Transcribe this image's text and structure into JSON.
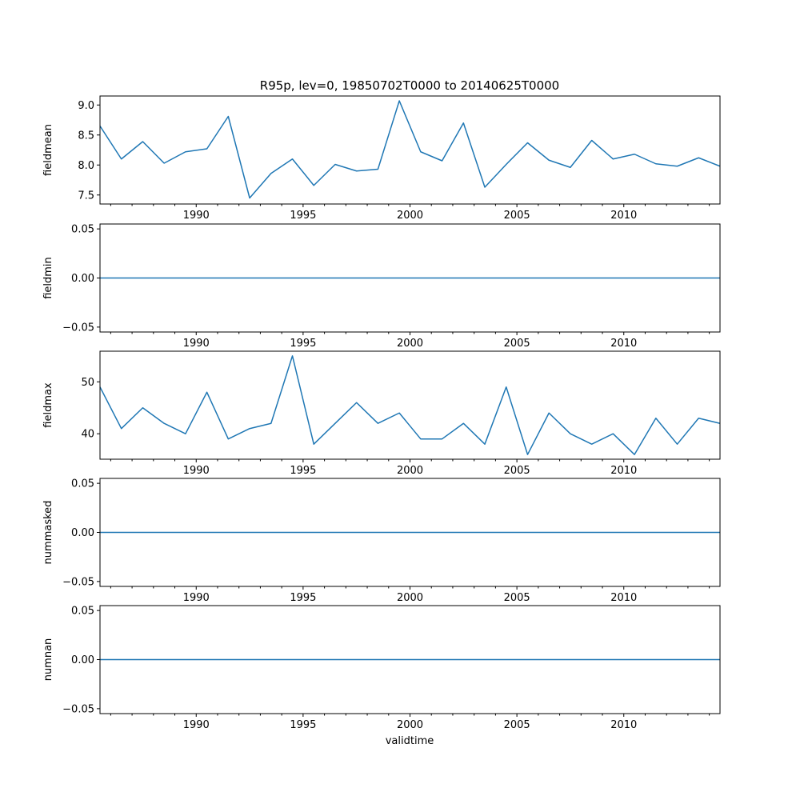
{
  "chart_data": {
    "type": "line",
    "title": "R95p, lev=0, 19850702T0000 to 20140625T0000",
    "xlabel": "validtime",
    "xlim": [
      1985.5,
      2014.5
    ],
    "x": [
      1985.5,
      1986.5,
      1987.5,
      1988.5,
      1989.5,
      1990.5,
      1991.5,
      1992.5,
      1993.5,
      1994.5,
      1995.5,
      1996.5,
      1997.5,
      1998.5,
      1999.5,
      2000.5,
      2001.5,
      2002.5,
      2003.5,
      2004.5,
      2005.5,
      2006.5,
      2007.5,
      2008.5,
      2009.5,
      2010.5,
      2011.5,
      2012.5,
      2013.5,
      2014.5
    ],
    "x_major_ticks": [
      1990,
      1995,
      2000,
      2005,
      2010
    ],
    "x_tick_labels": [
      "1990",
      "1995",
      "2000",
      "2005",
      "2010"
    ],
    "line_color": "#1f77b4",
    "panels": [
      {
        "ylabel": "fieldmean",
        "ylim": [
          7.35,
          9.15
        ],
        "yticks": [
          7.5,
          8.0,
          8.5,
          9.0
        ],
        "ytick_labels": [
          "7.5",
          "8.0",
          "8.5",
          "9.0"
        ],
        "values": [
          8.65,
          8.1,
          8.39,
          8.03,
          8.22,
          8.27,
          8.81,
          7.45,
          7.86,
          8.1,
          7.66,
          8.01,
          7.9,
          7.93,
          9.07,
          8.22,
          8.07,
          8.7,
          7.63,
          8.01,
          8.37,
          8.08,
          7.96,
          8.41,
          8.1,
          8.18,
          8.02,
          7.98,
          8.12,
          7.98
        ]
      },
      {
        "ylabel": "fieldmin",
        "ylim": [
          -0.055,
          0.055
        ],
        "yticks": [
          -0.05,
          0.0,
          0.05
        ],
        "ytick_labels": [
          "−0.05",
          "0.00",
          "0.05"
        ],
        "values": [
          0,
          0,
          0,
          0,
          0,
          0,
          0,
          0,
          0,
          0,
          0,
          0,
          0,
          0,
          0,
          0,
          0,
          0,
          0,
          0,
          0,
          0,
          0,
          0,
          0,
          0,
          0,
          0,
          0,
          0
        ]
      },
      {
        "ylabel": "fieldmax",
        "ylim": [
          35.1,
          55.9
        ],
        "yticks": [
          40,
          50
        ],
        "ytick_labels": [
          "40",
          "50"
        ],
        "values": [
          49,
          41,
          45,
          42,
          40,
          48,
          39,
          41,
          42,
          55,
          38,
          42,
          46,
          42,
          44,
          39,
          39,
          42,
          38,
          49,
          36,
          44,
          40,
          38,
          40,
          36,
          43,
          38,
          43,
          42
        ]
      },
      {
        "ylabel": "nummasked",
        "ylim": [
          -0.055,
          0.055
        ],
        "yticks": [
          -0.05,
          0.0,
          0.05
        ],
        "ytick_labels": [
          "−0.05",
          "0.00",
          "0.05"
        ],
        "values": [
          0,
          0,
          0,
          0,
          0,
          0,
          0,
          0,
          0,
          0,
          0,
          0,
          0,
          0,
          0,
          0,
          0,
          0,
          0,
          0,
          0,
          0,
          0,
          0,
          0,
          0,
          0,
          0,
          0,
          0
        ]
      },
      {
        "ylabel": "numnan",
        "ylim": [
          -0.055,
          0.055
        ],
        "yticks": [
          -0.05,
          0.0,
          0.05
        ],
        "ytick_labels": [
          "−0.05",
          "0.00",
          "0.05"
        ],
        "values": [
          0,
          0,
          0,
          0,
          0,
          0,
          0,
          0,
          0,
          0,
          0,
          0,
          0,
          0,
          0,
          0,
          0,
          0,
          0,
          0,
          0,
          0,
          0,
          0,
          0,
          0,
          0,
          0,
          0,
          0
        ]
      }
    ]
  }
}
